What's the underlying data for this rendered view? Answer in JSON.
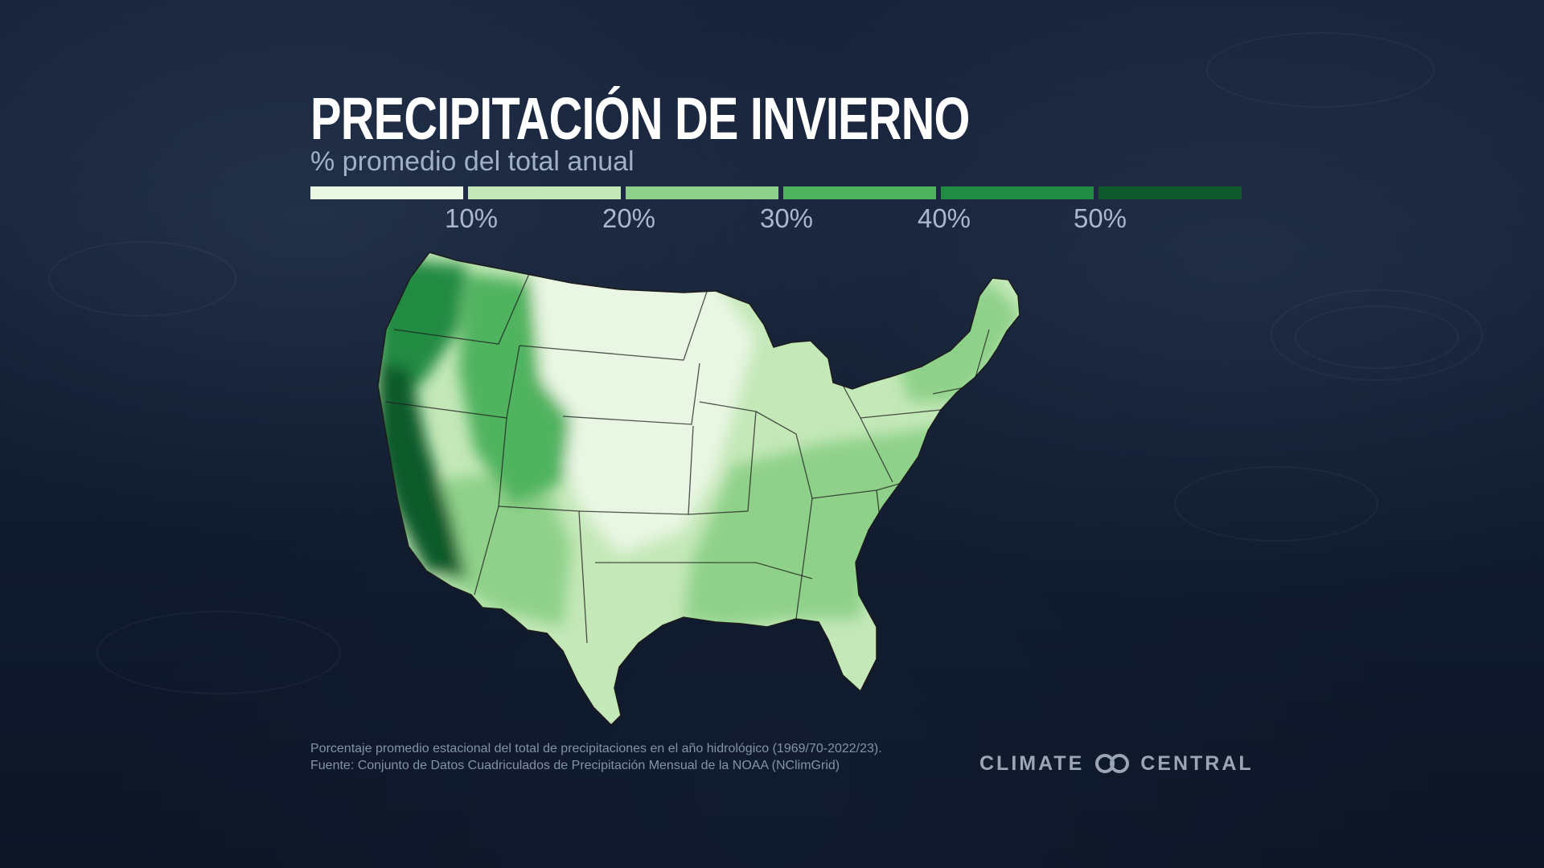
{
  "title": "PRECIPITACIÓN DE INVIERNO",
  "subtitle": "% promedio del total anual",
  "legend": {
    "colors": [
      "#e9f6e3",
      "#c4e8b8",
      "#8fd18a",
      "#4fb35e",
      "#218b43",
      "#0e5a2c"
    ],
    "ticks": [
      "10%",
      "20%",
      "30%",
      "40%",
      "50%"
    ]
  },
  "map": {
    "region": "Estados Unidos contiguos",
    "colors": {
      "west_coast": "#0e5a2c",
      "northwest": "#218b43",
      "mountain": "#4fb35e",
      "southwest": "#8fd18a",
      "great_plains": "#e9f6e3",
      "midwest_south": "#c4e8b8",
      "southeast": "#8fd18a",
      "northeast": "#8fd18a",
      "state_borders": "#1b1b1b"
    }
  },
  "footnote": {
    "line1": "Porcentaje promedio estacional del total de precipitaciones en el año hidrológico (1969/70-2022/23).",
    "line2": "Fuente: Conjunto de Datos Cuadriculados de Precipitación Mensual de la NOAA (NClimGrid)"
  },
  "logo": {
    "left_text": "CLIMATE",
    "right_text": "CENTRAL",
    "icon": "infinity-rings-icon"
  }
}
